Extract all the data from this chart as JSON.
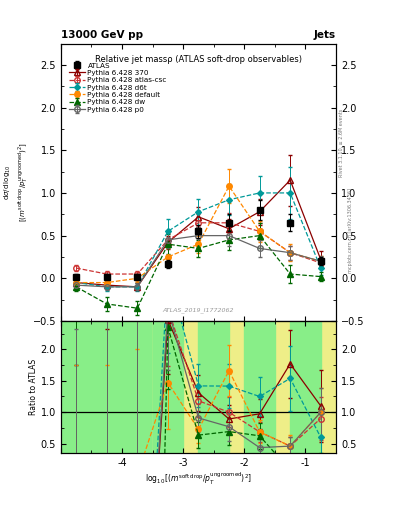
{
  "title": "Relative jet massρ (ATLAS soft-drop observables)",
  "top_left_label": "13000 GeV pp",
  "top_right_label": "Jets",
  "watermark": "ATLAS_2019_I1772062",
  "xlabel": "log_{10}[(m^{soft drop}/p_T^{ungroomed})^2]",
  "ylabel": "(1/sigma_resum) dsigma/d log10[(m soft drop/pT ungroomed)^2]",
  "ratio_ylabel": "Ratio to ATLAS",
  "xlim": [
    -5.0,
    -0.5
  ],
  "ylim_main": [
    -0.5,
    2.75
  ],
  "ylim_ratio": [
    0.35,
    2.45
  ],
  "atlas_x": [
    -4.75,
    -4.25,
    -3.75,
    -3.25,
    -2.75,
    -2.25,
    -1.75,
    -1.25,
    -0.75
  ],
  "atlas_y": [
    0.02,
    0.02,
    0.02,
    0.17,
    0.55,
    0.65,
    0.8,
    0.65,
    0.2
  ],
  "atlas_yerr": [
    0.03,
    0.03,
    0.03,
    0.05,
    0.08,
    0.1,
    0.12,
    0.1,
    0.05
  ],
  "p370_x": [
    -4.75,
    -4.25,
    -3.75,
    -3.25,
    -2.75,
    -2.25,
    -1.75,
    -1.25,
    -0.75
  ],
  "p370_y": [
    -0.05,
    -0.08,
    -0.1,
    0.42,
    0.72,
    0.58,
    0.78,
    1.15,
    0.22
  ],
  "p370_yerr": [
    0.04,
    0.04,
    0.04,
    0.08,
    0.12,
    0.12,
    0.15,
    0.3,
    0.1
  ],
  "pcac_x": [
    -4.75,
    -4.25,
    -3.75,
    -3.25,
    -2.75,
    -2.25,
    -1.75,
    -1.25,
    -0.75
  ],
  "pcac_y": [
    0.12,
    0.05,
    0.05,
    0.45,
    0.65,
    0.65,
    0.55,
    0.3,
    0.18
  ],
  "pcac_yerr": [
    0.04,
    0.03,
    0.03,
    0.08,
    0.1,
    0.12,
    0.1,
    0.08,
    0.05
  ],
  "pd6t_x": [
    -4.75,
    -4.25,
    -3.75,
    -3.25,
    -2.75,
    -2.25,
    -1.75,
    -1.25,
    -0.75
  ],
  "pd6t_y": [
    -0.05,
    -0.1,
    -0.1,
    0.55,
    0.78,
    0.92,
    1.0,
    1.0,
    0.12
  ],
  "pd6t_yerr": [
    0.04,
    0.05,
    0.05,
    0.15,
    0.15,
    0.18,
    0.2,
    0.3,
    0.08
  ],
  "pdef_x": [
    -4.75,
    -4.25,
    -3.75,
    -3.25,
    -2.75,
    -2.25,
    -1.75,
    -1.25,
    -0.75
  ],
  "pdef_y": [
    -0.05,
    -0.05,
    0.0,
    0.25,
    0.4,
    1.08,
    0.55,
    0.3,
    0.2
  ],
  "pdef_yerr": [
    0.04,
    0.04,
    0.04,
    0.1,
    0.1,
    0.2,
    0.12,
    0.1,
    0.06
  ],
  "pdw_x": [
    -4.75,
    -4.25,
    -3.75,
    -3.25,
    -2.75,
    -2.25,
    -1.75,
    -1.25,
    -0.75
  ],
  "pdw_y": [
    -0.1,
    -0.3,
    -0.35,
    0.4,
    0.35,
    0.45,
    0.5,
    0.05,
    0.02
  ],
  "pdw_yerr": [
    0.05,
    0.08,
    0.08,
    0.12,
    0.1,
    0.12,
    0.15,
    0.1,
    0.05
  ],
  "pp0_x": [
    -4.75,
    -4.25,
    -3.75,
    -3.25,
    -2.75,
    -2.25,
    -1.75,
    -1.25,
    -0.75
  ],
  "pp0_y": [
    -0.08,
    -0.1,
    -0.1,
    0.45,
    0.5,
    0.5,
    0.35,
    0.3,
    0.2
  ],
  "pp0_yerr": [
    0.04,
    0.04,
    0.04,
    0.1,
    0.1,
    0.12,
    0.1,
    0.08,
    0.06
  ],
  "color_atlas": "#000000",
  "color_p370": "#8B0000",
  "color_pcac": "#CC3333",
  "color_pd6t": "#009999",
  "color_pdef": "#FF8800",
  "color_pdw": "#006600",
  "color_pp0": "#666666",
  "bg_green": "#88EE88",
  "bg_yellow": "#EEEE88",
  "xticks": [
    -5,
    -4,
    -3,
    -2,
    -1
  ],
  "xtick_labels": [
    "",
    "-4",
    "-3",
    "-2",
    "-1"
  ],
  "yticks_main": [
    -0.5,
    0.0,
    0.5,
    1.0,
    1.5,
    2.0,
    2.5
  ],
  "yticks_ratio": [
    0.5,
    1.0,
    1.5,
    2.0
  ]
}
